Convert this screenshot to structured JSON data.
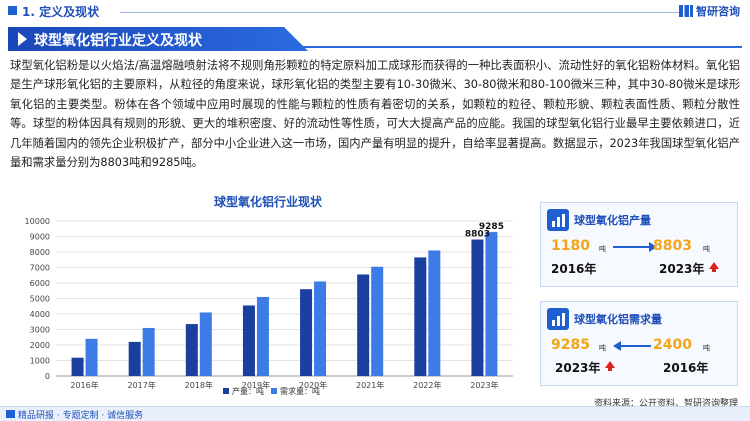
{
  "header": {
    "section": "1. 定义及现状",
    "brand": "智研咨询"
  },
  "banner": {
    "title": "球型氧化铝行业定义及现状"
  },
  "paragraph": "球型氧化铝粉是以火焰法/高温熔融喷射法将不规则角形颗粒的特定原料加工成球形而获得的一种比表面积小、流动性好的氧化铝粉体材料。氧化铝是生产球形氧化铝的主要原料，从粒径的角度来说，球形氧化铝的类型主要有10-30微米、30-80微米和80-100微米三种，其中30-80微米是球形氧化铝的主要类型。粉体在各个领域中应用时展现的性能与颗粒的性质有着密切的关系，如颗粒的粒径、颗粒形貌、颗粒表面性质、颗粒分散性等。球型的粉体因具有规则的形貌、更大的堆积密度、好的流动性等性质，可大大提高产品的应能。我国的球型氧化铝行业最早主要依赖进口，近几年随着国内的领先企业积极扩产，部分中小企业进入这一市场，国内产量有明显的提升，自给率显著提高。数据显示，2023年我国球型氧化铝产量和需求量分别为8803吨和9285吨。",
  "chart_data": {
    "type": "bar",
    "title": "球型氧化铝行业现状",
    "categories": [
      "2016年",
      "2017年",
      "2018年",
      "2019年",
      "2020年",
      "2021年",
      "2022年",
      "2023年"
    ],
    "series": [
      {
        "name": "产量：吨",
        "values": [
          1180,
          2200,
          3350,
          4550,
          5600,
          6550,
          7650,
          8803
        ],
        "color": "#1a3f9e"
      },
      {
        "name": "需求量：吨",
        "values": [
          2400,
          3100,
          4100,
          5100,
          6100,
          7050,
          8100,
          9285
        ],
        "color": "#3d7be6"
      }
    ],
    "ylim": [
      0,
      10000
    ],
    "yticks": [
      0,
      1000,
      2000,
      3000,
      4000,
      5000,
      6000,
      7000,
      8000,
      9000,
      10000
    ],
    "data_labels": [
      {
        "series": 0,
        "index": 7,
        "text": "8803"
      },
      {
        "series": 1,
        "index": 7,
        "text": "9285"
      }
    ],
    "grid": true,
    "legend": "bottom"
  },
  "cards": {
    "production": {
      "label": "球型氧化铝产量",
      "from_value": "1180",
      "from_unit": "吨",
      "from_year": "2016年",
      "to_value": "8803",
      "to_unit": "吨",
      "to_year": "2023年"
    },
    "demand": {
      "label": "球型氧化铝需求量",
      "left_value": "9285",
      "left_unit": "吨",
      "left_year": "2023年",
      "right_value": "2400",
      "right_unit": "吨",
      "right_year": "2016年"
    }
  },
  "source": "资料来源：公开资料、智研咨询整理",
  "footer": {
    "text": "精品研报 · 专题定制 · 诚信服务"
  },
  "colors": {
    "accent": "#1f5fd0",
    "highlight": "#f2a516",
    "up": "#d9251c"
  }
}
